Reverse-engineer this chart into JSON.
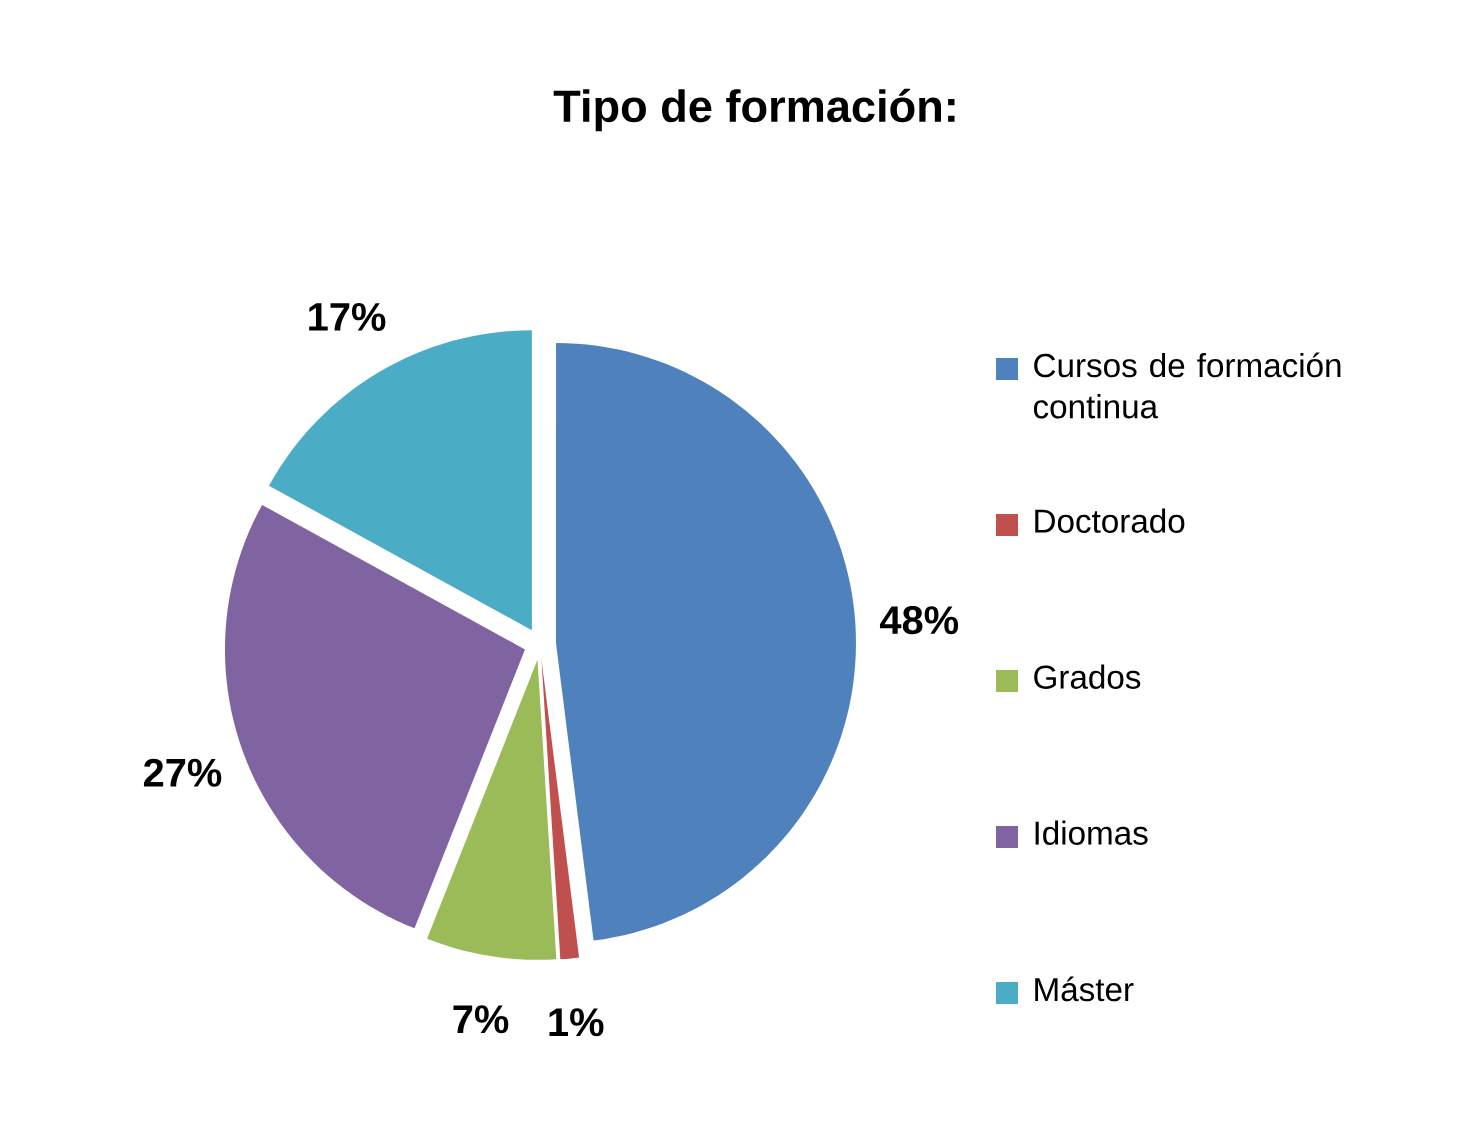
{
  "chart_data": {
    "type": "pie",
    "title": "Tipo de formación:",
    "categories": [
      "Cursos de formación continua",
      "Doctorado",
      "Grados",
      "Idiomas",
      "Máster"
    ],
    "values": [
      48,
      1,
      7,
      27,
      17
    ],
    "value_labels": [
      "48%",
      "1%",
      "7%",
      "27%",
      "17%"
    ],
    "colors": [
      "#4f81bd",
      "#c0504d",
      "#9bbb59",
      "#8064a2",
      "#4bacc6"
    ],
    "legend": "right"
  }
}
